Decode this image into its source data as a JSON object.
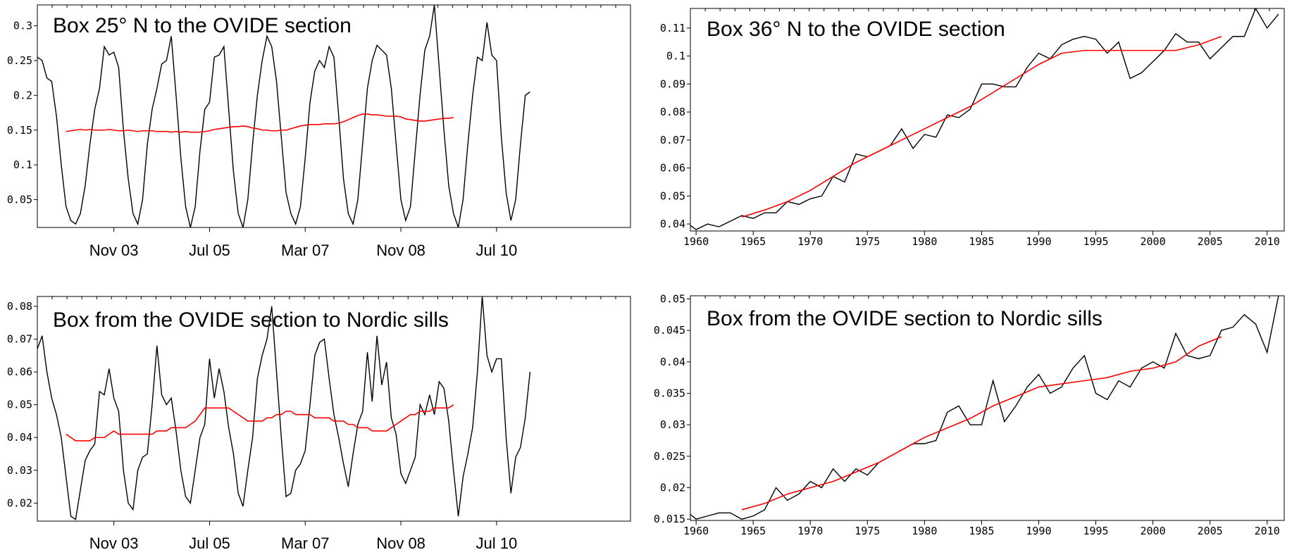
{
  "chart_data": [
    {
      "type": "line",
      "title": "Box 25° N to the OVIDE section",
      "xlabel": "",
      "ylabel": "",
      "x_start": "2002-07",
      "x_end": "2012-11",
      "x_ticks": [
        {
          "label": "Nov 03",
          "at": "2003-11"
        },
        {
          "label": "Jul 05",
          "at": "2005-07"
        },
        {
          "label": "Mar 07",
          "at": "2007-03"
        },
        {
          "label": "Nov 08",
          "at": "2008-11"
        },
        {
          "label": "Jul 10",
          "at": "2010-07"
        }
      ],
      "ylim": [
        0.01,
        0.33
      ],
      "y_ticks": [
        0.05,
        0.1,
        0.15,
        0.2,
        0.25,
        0.3
      ],
      "y_tick_labels": [
        "0.05",
        "0.1",
        "0.15",
        "0.2",
        "0.25",
        "0.3"
      ],
      "colors": {
        "monthly": "#000000",
        "running_mean": "#ff0000"
      },
      "series": [
        {
          "x_start": "2002-07",
          "step": "month",
          "values": [
            0.255,
            0.25,
            0.225,
            0.22,
            0.17,
            0.1,
            0.04,
            0.02,
            0.015,
            0.03,
            0.07,
            0.13,
            0.18,
            0.21,
            0.27,
            0.258,
            0.262,
            0.24,
            0.15,
            0.08,
            0.03,
            0.015,
            0.05,
            0.13,
            0.18,
            0.21,
            0.245,
            0.25,
            0.285,
            0.2,
            0.11,
            0.04,
            0.01,
            0.04,
            0.12,
            0.18,
            0.19,
            0.255,
            0.258,
            0.27,
            0.18,
            0.09,
            0.03,
            0.01,
            0.05,
            0.13,
            0.2,
            0.25,
            0.285,
            0.27,
            0.22,
            0.14,
            0.06,
            0.03,
            0.015,
            0.04,
            0.11,
            0.19,
            0.235,
            0.25,
            0.24,
            0.27,
            0.255,
            0.17,
            0.08,
            0.03,
            0.015,
            0.05,
            0.13,
            0.21,
            0.25,
            0.272,
            0.265,
            0.258,
            0.21,
            0.13,
            0.05,
            0.02,
            0.04,
            0.12,
            0.2,
            0.265,
            0.285,
            0.33,
            0.24,
            0.15,
            0.07,
            0.03,
            0.01,
            0.05,
            0.13,
            0.2,
            0.255,
            0.25,
            0.305,
            0.258,
            0.25,
            0.14,
            0.06,
            0.02,
            0.05,
            0.13,
            0.2,
            0.205
          ]
        },
        {
          "x_start": "2003-01",
          "step": "month",
          "values": [
            0.148,
            0.149,
            0.15,
            0.151,
            0.15,
            0.151,
            0.15,
            0.15,
            0.15,
            0.151,
            0.15,
            0.149,
            0.149,
            0.15,
            0.149,
            0.148,
            0.149,
            0.149,
            0.149,
            0.148,
            0.148,
            0.148,
            0.147,
            0.148,
            0.147,
            0.148,
            0.147,
            0.147,
            0.147,
            0.148,
            0.149,
            0.151,
            0.152,
            0.153,
            0.154,
            0.155,
            0.155,
            0.156,
            0.155,
            0.153,
            0.152,
            0.15,
            0.15,
            0.149,
            0.149,
            0.15,
            0.15,
            0.152,
            0.154,
            0.156,
            0.157,
            0.158,
            0.158,
            0.158,
            0.159,
            0.159,
            0.159,
            0.16,
            0.162,
            0.165,
            0.168,
            0.171,
            0.173,
            0.173,
            0.172,
            0.172,
            0.171,
            0.17,
            0.17,
            0.17,
            0.169,
            0.166,
            0.165,
            0.164,
            0.163,
            0.163,
            0.164,
            0.165,
            0.166,
            0.167,
            0.167,
            0.168
          ]
        }
      ]
    },
    {
      "type": "line",
      "title": "Box 36° N to the OVIDE section",
      "xlabel": "",
      "ylabel": "",
      "xlim": [
        1959.5,
        2011.5
      ],
      "x_ticks": [
        1960,
        1965,
        1970,
        1975,
        1980,
        1985,
        1990,
        1995,
        2000,
        2005,
        2010
      ],
      "ylim": [
        0.0375,
        0.117
      ],
      "y_ticks": [
        0.04,
        0.05,
        0.06,
        0.07,
        0.08,
        0.09,
        0.1,
        0.11
      ],
      "y_tick_labels": [
        "0.04",
        "0.05",
        "0.06",
        "0.07",
        "0.08",
        "0.09",
        "0.1",
        "0.11"
      ],
      "colors": {
        "annual": "#000000",
        "running_mean": "#ff0000"
      },
      "series": [
        {
          "x": [
            1959,
            1960,
            1961,
            1962,
            1963,
            1964,
            1965,
            1966,
            1967,
            1968,
            1969,
            1970,
            1971,
            1972,
            1973,
            1974,
            1975,
            1976,
            1977,
            1978,
            1979,
            1980,
            1981,
            1982,
            1983,
            1984,
            1985,
            1986,
            1987,
            1988,
            1989,
            1990,
            1991,
            1992,
            1993,
            1994,
            1995,
            1996,
            1997,
            1998,
            1999,
            2000,
            2001,
            2002,
            2003,
            2004,
            2005,
            2006,
            2007,
            2008,
            2009,
            2010,
            2011
          ],
          "values": [
            0.041,
            0.038,
            0.04,
            0.039,
            0.041,
            0.043,
            0.042,
            0.044,
            0.044,
            0.048,
            0.047,
            0.049,
            0.05,
            0.057,
            0.055,
            0.065,
            0.064,
            0.066,
            0.068,
            0.074,
            0.067,
            0.072,
            0.071,
            0.079,
            0.078,
            0.081,
            0.09,
            0.09,
            0.089,
            0.089,
            0.096,
            0.101,
            0.099,
            0.104,
            0.106,
            0.107,
            0.106,
            0.101,
            0.105,
            0.092,
            0.094,
            0.098,
            0.102,
            0.108,
            0.105,
            0.105,
            0.099,
            0.103,
            0.107,
            0.107,
            0.117,
            0.11,
            0.115
          ]
        },
        {
          "x": [
            1964,
            1966,
            1968,
            1970,
            1972,
            1974,
            1976,
            1978,
            1980,
            1982,
            1984,
            1986,
            1988,
            1990,
            1992,
            1994,
            1996,
            1998,
            2000,
            2002,
            2004,
            2006
          ],
          "values": [
            0.0425,
            0.045,
            0.048,
            0.052,
            0.057,
            0.062,
            0.066,
            0.07,
            0.074,
            0.078,
            0.082,
            0.087,
            0.092,
            0.097,
            0.101,
            0.102,
            0.102,
            0.102,
            0.102,
            0.102,
            0.104,
            0.107
          ]
        }
      ]
    },
    {
      "type": "line",
      "title": "Box from the OVIDE section to Nordic sills",
      "xlabel": "",
      "ylabel": "",
      "x_start": "2002-07",
      "x_end": "2012-11",
      "x_ticks": [
        {
          "label": "Nov 03",
          "at": "2003-11"
        },
        {
          "label": "Jul 05",
          "at": "2005-07"
        },
        {
          "label": "Mar 07",
          "at": "2007-03"
        },
        {
          "label": "Nov 08",
          "at": "2008-11"
        },
        {
          "label": "Jul 10",
          "at": "2010-07"
        }
      ],
      "ylim": [
        0.0145,
        0.083
      ],
      "y_ticks": [
        0.02,
        0.03,
        0.04,
        0.05,
        0.06,
        0.07,
        0.08
      ],
      "y_tick_labels": [
        "0.02",
        "0.03",
        "0.04",
        "0.05",
        "0.06",
        "0.07",
        "0.08"
      ],
      "colors": {
        "monthly": "#000000",
        "running_mean": "#ff0000"
      },
      "series": [
        {
          "x_start": "2002-07",
          "step": "month",
          "values": [
            0.067,
            0.071,
            0.06,
            0.052,
            0.047,
            0.04,
            0.028,
            0.016,
            0.015,
            0.024,
            0.033,
            0.036,
            0.038,
            0.054,
            0.053,
            0.061,
            0.052,
            0.048,
            0.03,
            0.02,
            0.018,
            0.03,
            0.034,
            0.035,
            0.05,
            0.068,
            0.053,
            0.05,
            0.052,
            0.042,
            0.03,
            0.022,
            0.02,
            0.03,
            0.04,
            0.044,
            0.064,
            0.052,
            0.061,
            0.054,
            0.043,
            0.035,
            0.023,
            0.019,
            0.03,
            0.04,
            0.058,
            0.065,
            0.07,
            0.08,
            0.06,
            0.04,
            0.022,
            0.023,
            0.03,
            0.032,
            0.036,
            0.05,
            0.065,
            0.069,
            0.07,
            0.058,
            0.047,
            0.04,
            0.032,
            0.025,
            0.035,
            0.044,
            0.048,
            0.066,
            0.051,
            0.071,
            0.056,
            0.063,
            0.046,
            0.041,
            0.029,
            0.026,
            0.03,
            0.034,
            0.05,
            0.047,
            0.053,
            0.047,
            0.057,
            0.055,
            0.045,
            0.03,
            0.016,
            0.028,
            0.035,
            0.043,
            0.06,
            0.083,
            0.065,
            0.06,
            0.064,
            0.064,
            0.04,
            0.023,
            0.034,
            0.037,
            0.046,
            0.06
          ]
        },
        {
          "x_start": "2003-01",
          "step": "month",
          "values": [
            0.041,
            0.04,
            0.039,
            0.039,
            0.039,
            0.039,
            0.04,
            0.04,
            0.04,
            0.041,
            0.042,
            0.041,
            0.041,
            0.041,
            0.041,
            0.041,
            0.041,
            0.041,
            0.041,
            0.042,
            0.042,
            0.042,
            0.043,
            0.043,
            0.043,
            0.043,
            0.044,
            0.045,
            0.047,
            0.049,
            0.049,
            0.049,
            0.049,
            0.049,
            0.049,
            0.048,
            0.047,
            0.046,
            0.045,
            0.045,
            0.045,
            0.045,
            0.046,
            0.046,
            0.047,
            0.047,
            0.048,
            0.048,
            0.047,
            0.047,
            0.047,
            0.047,
            0.046,
            0.046,
            0.046,
            0.046,
            0.045,
            0.045,
            0.045,
            0.044,
            0.044,
            0.043,
            0.043,
            0.043,
            0.042,
            0.042,
            0.042,
            0.042,
            0.043,
            0.044,
            0.045,
            0.046,
            0.047,
            0.047,
            0.048,
            0.048,
            0.048,
            0.049,
            0.049,
            0.049,
            0.049,
            0.05
          ]
        }
      ]
    },
    {
      "type": "line",
      "title": "Box from the OVIDE section to Nordic sills",
      "xlabel": "",
      "ylabel": "",
      "xlim": [
        1959.5,
        2011.5
      ],
      "x_ticks": [
        1960,
        1965,
        1970,
        1975,
        1980,
        1985,
        1990,
        1995,
        2000,
        2005,
        2010
      ],
      "ylim": [
        0.0148,
        0.0505
      ],
      "y_ticks": [
        0.015,
        0.02,
        0.025,
        0.03,
        0.035,
        0.04,
        0.045,
        0.05
      ],
      "y_tick_labels": [
        "0.015",
        "0.02",
        "0.025",
        "0.03",
        "0.035",
        "0.04",
        "0.045",
        "0.05"
      ],
      "colors": {
        "annual": "#000000",
        "running_mean": "#ff0000"
      },
      "series": [
        {
          "x": [
            1959,
            1960,
            1961,
            1962,
            1963,
            1964,
            1965,
            1966,
            1967,
            1968,
            1969,
            1970,
            1971,
            1972,
            1973,
            1974,
            1975,
            1976,
            1977,
            1978,
            1979,
            1980,
            1981,
            1982,
            1983,
            1984,
            1985,
            1986,
            1987,
            1988,
            1989,
            1990,
            1991,
            1992,
            1993,
            1994,
            1995,
            1996,
            1997,
            1998,
            1999,
            2000,
            2001,
            2002,
            2003,
            2004,
            2005,
            2006,
            2007,
            2008,
            2009,
            2010,
            2011
          ],
          "values": [
            0.0165,
            0.015,
            0.0155,
            0.016,
            0.016,
            0.015,
            0.0155,
            0.0165,
            0.02,
            0.018,
            0.019,
            0.021,
            0.02,
            0.023,
            0.021,
            0.023,
            0.022,
            0.024,
            0.025,
            0.026,
            0.027,
            0.027,
            0.0275,
            0.032,
            0.033,
            0.03,
            0.03,
            0.037,
            0.0305,
            0.033,
            0.036,
            0.038,
            0.035,
            0.036,
            0.039,
            0.041,
            0.035,
            0.034,
            0.037,
            0.036,
            0.039,
            0.04,
            0.039,
            0.0445,
            0.041,
            0.0405,
            0.041,
            0.045,
            0.0455,
            0.0475,
            0.046,
            0.0415,
            0.0505
          ]
        },
        {
          "x": [
            1964,
            1966,
            1968,
            1970,
            1972,
            1974,
            1976,
            1978,
            1980,
            1982,
            1984,
            1986,
            1988,
            1990,
            1992,
            1994,
            1996,
            1998,
            2000,
            2002,
            2004,
            2006
          ],
          "values": [
            0.0165,
            0.0175,
            0.019,
            0.02,
            0.021,
            0.0225,
            0.024,
            0.026,
            0.028,
            0.0295,
            0.031,
            0.033,
            0.0345,
            0.036,
            0.0365,
            0.037,
            0.0375,
            0.0385,
            0.039,
            0.04,
            0.0425,
            0.044
          ]
        }
      ]
    }
  ]
}
